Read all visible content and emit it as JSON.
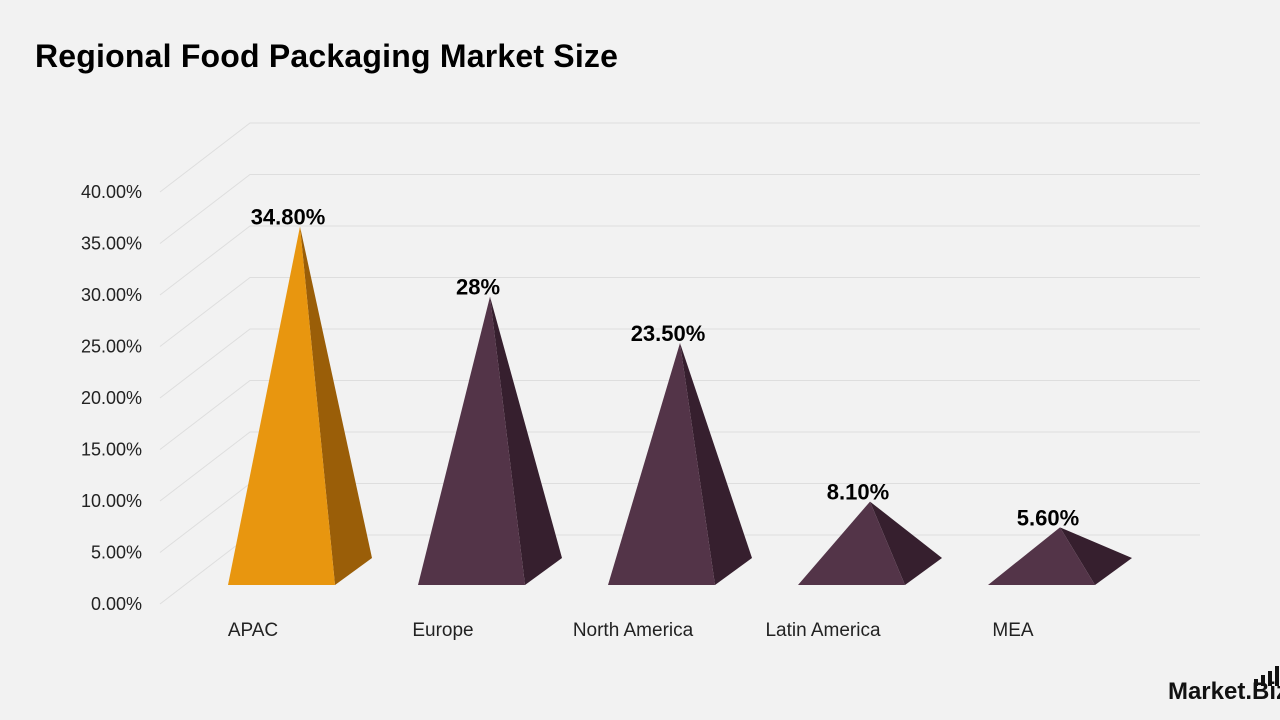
{
  "title": "Regional Food Packaging Market Size",
  "brand": {
    "name": "Market.Biz",
    "icon": "bar-signal-icon",
    "color": "#111111"
  },
  "colors": {
    "highlight": "#e8960f",
    "highlight_side": "#9a5e08",
    "primary": "#533448",
    "primary_side": "#361f2e",
    "grid": "#dedede"
  },
  "chart_data": {
    "type": "bar",
    "style": "3d-pyramid",
    "title": "Regional Food Packaging Market Size",
    "xlabel": "",
    "ylabel": "",
    "categories": [
      "APAC",
      "Europe",
      "North America",
      "Latin America",
      "MEA"
    ],
    "values": [
      34.8,
      28,
      23.5,
      8.1,
      5.6
    ],
    "data_labels": [
      "34.80%",
      "28%",
      "23.50%",
      "8.10%",
      "5.60%"
    ],
    "highlight_index": 0,
    "ylim": [
      0,
      40
    ],
    "yticks": [
      0,
      5,
      10,
      15,
      20,
      25,
      30,
      35,
      40
    ],
    "ytick_labels": [
      "0.00%",
      "5.00%",
      "10.00%",
      "15.00%",
      "20.00%",
      "25.00%",
      "30.00%",
      "35.00%",
      "40.00%"
    ],
    "grid": true,
    "legend": "none"
  }
}
